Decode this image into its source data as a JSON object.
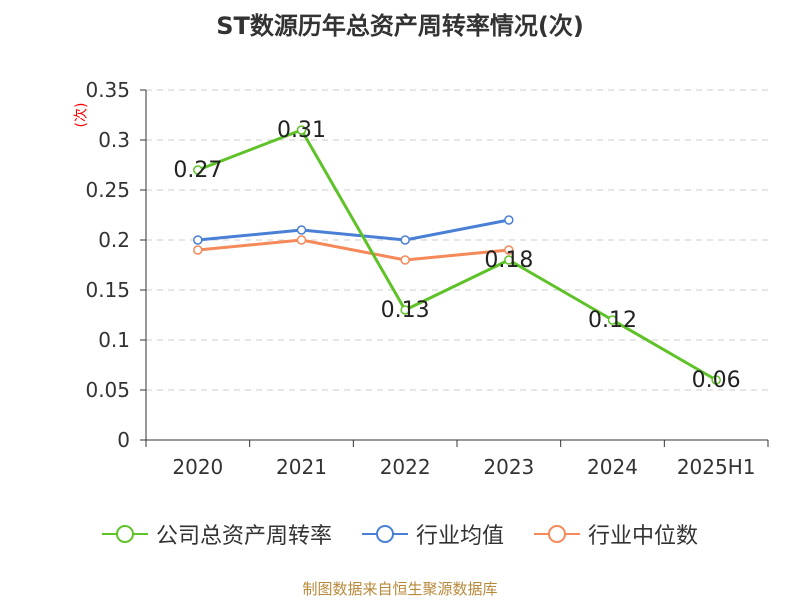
{
  "title": "ST数源历年总资产周转率情况(次)",
  "source": "制图数据来自恒生聚源数据库",
  "chart_data": {
    "type": "line",
    "title": "ST数源历年总资产周转率情况(次)",
    "ylabel": "(次)",
    "xlabel": "",
    "categories": [
      "2020",
      "2021",
      "2022",
      "2023",
      "2024",
      "2025H1"
    ],
    "ylim": [
      0,
      0.35
    ],
    "yticks": [
      0,
      0.05,
      0.1,
      0.15,
      0.2,
      0.25,
      0.3,
      0.35
    ],
    "ytick_labels": [
      "0",
      "0.05",
      "0.1",
      "0.15",
      "0.2",
      "0.25",
      "0.3",
      "0.35"
    ],
    "grid": true,
    "legend_position": "bottom",
    "series": [
      {
        "name": "公司总资产周转率",
        "color": "#5ec228",
        "values": [
          0.27,
          0.31,
          0.13,
          0.18,
          0.12,
          0.06
        ],
        "labels": [
          "0.27",
          "0.31",
          "0.13",
          "0.18",
          "0.12",
          "0.06"
        ],
        "show_labels": true
      },
      {
        "name": "行业均值",
        "color": "#4a7fd6",
        "values": [
          0.2,
          0.21,
          0.2,
          0.22,
          null,
          null
        ],
        "show_labels": false
      },
      {
        "name": "行业中位数",
        "color": "#f5895a",
        "values": [
          0.19,
          0.2,
          0.18,
          0.19,
          null,
          null
        ],
        "show_labels": false
      }
    ]
  }
}
